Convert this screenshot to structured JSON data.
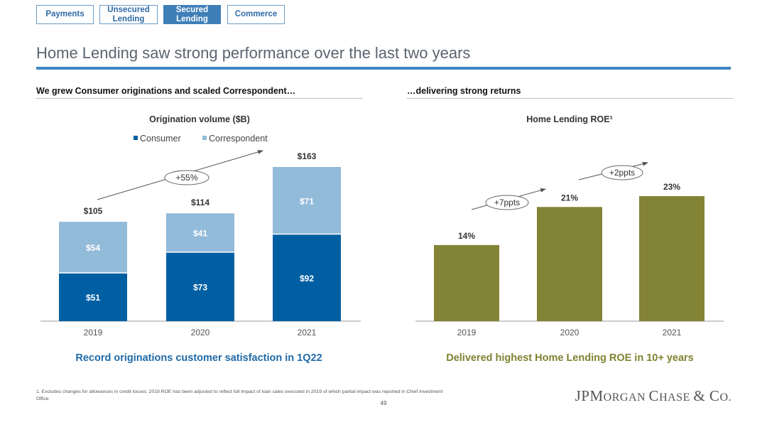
{
  "tabs": [
    {
      "label": "Payments",
      "active": false
    },
    {
      "label": "Unsecured Lending",
      "active": false
    },
    {
      "label": "Secured Lending",
      "active": true
    },
    {
      "label": "Commerce",
      "active": false
    }
  ],
  "title": "Home Lending saw strong performance over the last two years",
  "left_subtitle": "We grew Consumer originations and scaled Correspondent…",
  "right_subtitle": "…delivering strong returns",
  "left_callout": "Record originations customer satisfaction in 1Q22",
  "right_callout": "Delivered highest Home Lending ROE in 10+ years",
  "footnote": "1. Excludes changes for allowances in credit losses; 2019 ROE has been adjusted to reflect full impact of loan sales executed in 2019 of which partial impact was reported in Chief Investment Office",
  "page_number": "49",
  "logo": {
    "p1": "JPM",
    "p2": "ORGAN ",
    "p3": "C",
    "p4": "HASE ",
    "p5": "& C",
    "p6": "O."
  },
  "colors": {
    "consumer": "#005fa2",
    "correspondent": "#92bad9",
    "roe": "#838335",
    "accent": "#3f86c4"
  },
  "chart_data": [
    {
      "type": "bar",
      "stacked": true,
      "title": "Origination volume ($B)",
      "categories": [
        "2019",
        "2020",
        "2021"
      ],
      "series": [
        {
          "name": "Consumer",
          "values": [
            51,
            73,
            92
          ],
          "labels": [
            "$51",
            "$73",
            "$92"
          ]
        },
        {
          "name": "Correspondent",
          "values": [
            54,
            41,
            71
          ],
          "labels": [
            "$54",
            "$41",
            "$71"
          ]
        }
      ],
      "totals": [
        "$105",
        "$114",
        "$163"
      ],
      "annotations": [
        "+55%"
      ],
      "legend": "top"
    },
    {
      "type": "bar",
      "title": "Home Lending ROE¹",
      "categories": [
        "2019",
        "2020",
        "2021"
      ],
      "values": [
        14,
        21,
        23
      ],
      "labels": [
        "14%",
        "21%",
        "23%"
      ],
      "annotations": [
        "+7ppts",
        "+2ppts"
      ]
    }
  ]
}
